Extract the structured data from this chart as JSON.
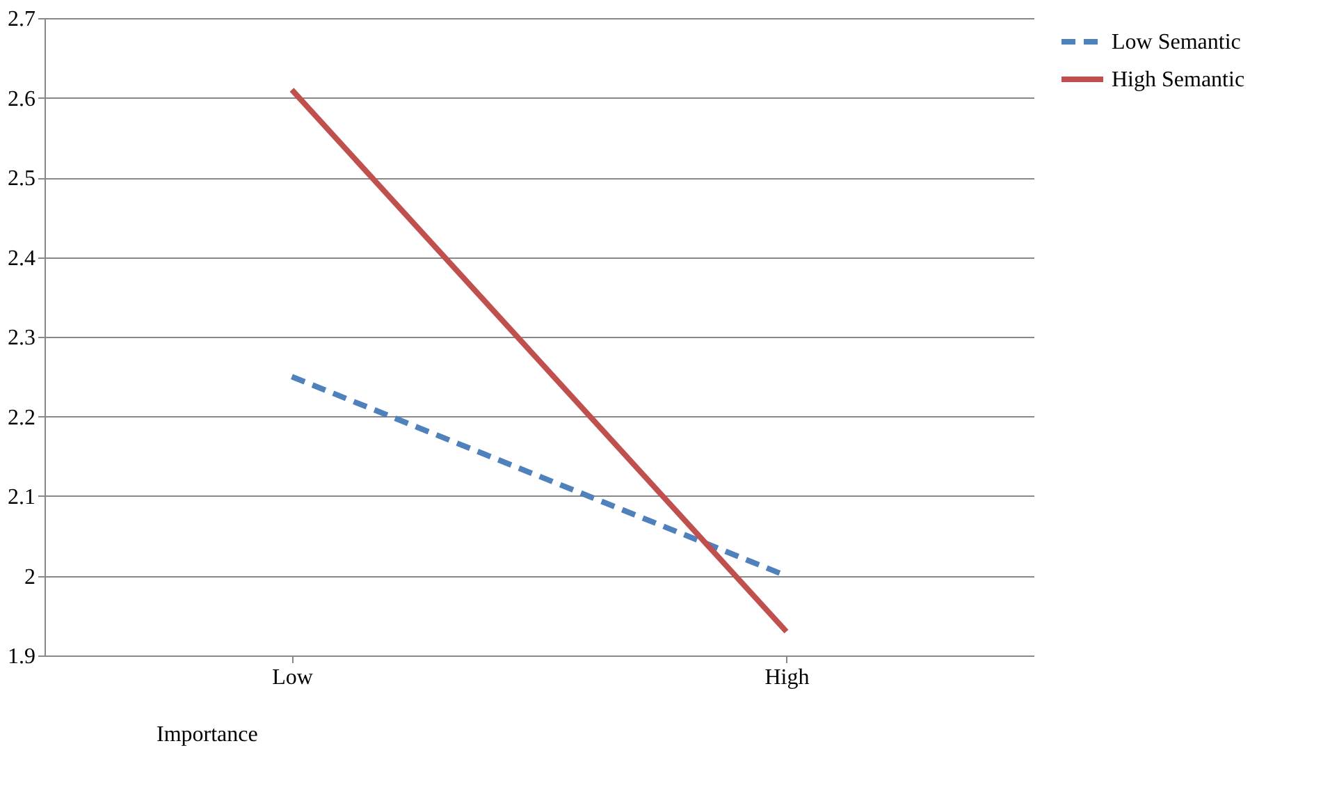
{
  "chart_data": {
    "type": "line",
    "xlabel": "Importance",
    "categories": [
      "Low",
      "High"
    ],
    "series": [
      {
        "name": "Low Semantic",
        "color": "#4f81bd",
        "line_style": "dashed",
        "values": [
          2.25,
          2.0
        ]
      },
      {
        "name": "High Semantic",
        "color": "#c0504d",
        "line_style": "solid",
        "values": [
          2.61,
          1.93
        ]
      }
    ],
    "ylim": [
      1.9,
      2.7
    ],
    "yticks": [
      1.9,
      2,
      2.1,
      2.2,
      2.3,
      2.4,
      2.5,
      2.6,
      2.7
    ],
    "grid": "y",
    "legend": "right",
    "marker": "none"
  }
}
